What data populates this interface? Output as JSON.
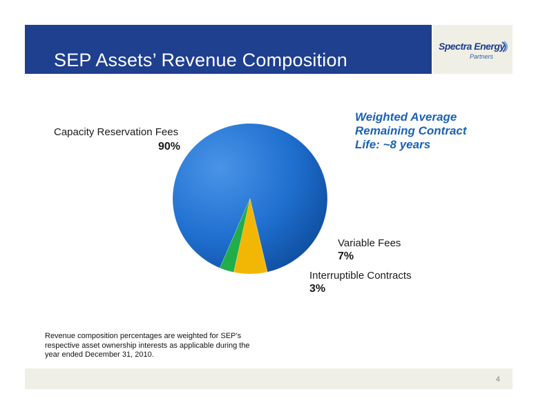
{
  "slide": {
    "title": "SEP Assets’ Revenue Composition",
    "logo": {
      "main": "Spectra Energy",
      "sub": "Partners"
    },
    "highlight": [
      "Weighted Average",
      "Remaining Contract",
      "Life: ~8 years"
    ],
    "footnote": "Revenue composition percentages are weighted for SEP’s respective asset ownership interests as applicable during the year ended December 31, 2010.",
    "page_number": "4"
  },
  "chart_data": {
    "type": "pie",
    "title": "",
    "slices": [
      {
        "label": "Capacity Reservation Fees",
        "value": 90,
        "display": "90%",
        "color": "#1f6fcf"
      },
      {
        "label": "Variable Fees",
        "value": 7,
        "display": "7%",
        "color": "#f2b705"
      },
      {
        "label": "Interruptible Contracts",
        "value": 3,
        "display": "3%",
        "color": "#1fae4a"
      }
    ]
  }
}
